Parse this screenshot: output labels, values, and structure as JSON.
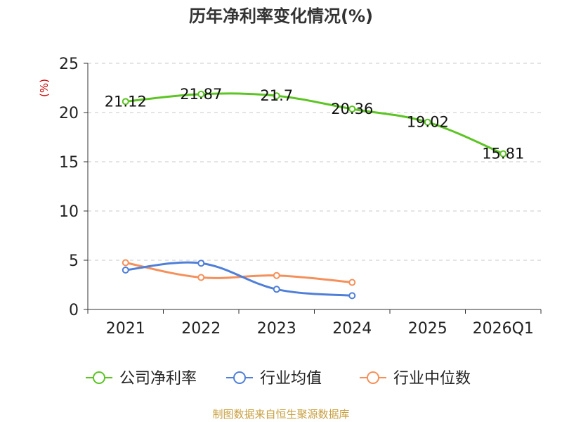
{
  "chart_data": {
    "type": "line",
    "title": "历年净利率变化情况(%)",
    "ylabel": "(%)",
    "xlabel": "",
    "ylim": [
      0,
      25
    ],
    "yticks": [
      0,
      5,
      10,
      15,
      20,
      25
    ],
    "categories": [
      "2021",
      "2022",
      "2023",
      "2024",
      "2025",
      "2026Q1"
    ],
    "series": [
      {
        "name": "公司净利率",
        "color": "#5cc423",
        "values": [
          21.12,
          21.87,
          21.7,
          20.36,
          19.02,
          15.81
        ],
        "labels": [
          "21.12",
          "21.87",
          "21.7",
          "20.36",
          "19.02",
          "15.81"
        ]
      },
      {
        "name": "行业均值",
        "color": "#4f7fd8",
        "values": [
          4.0,
          4.7,
          2.05,
          1.4,
          null,
          null
        ]
      },
      {
        "name": "行业中位数",
        "color": "#f5905a",
        "values": [
          4.75,
          3.25,
          3.45,
          2.75,
          null,
          null
        ]
      }
    ],
    "grid": true,
    "legend": "bottom"
  },
  "footer": {
    "source": "制图数据来自恒生聚源数据库"
  }
}
